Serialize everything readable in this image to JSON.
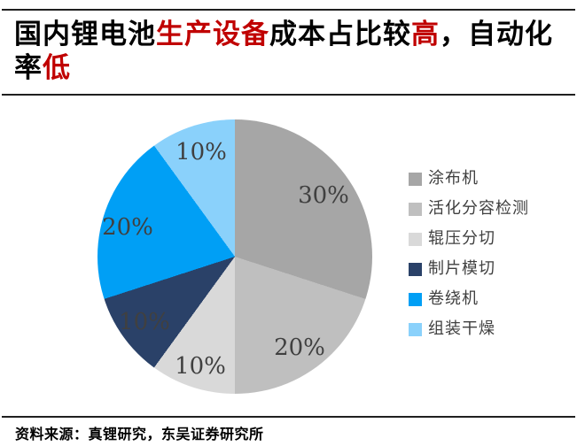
{
  "header": {
    "title_seg1": "国内锂电池",
    "title_seg2": "生产设备",
    "title_seg3": "成本占比较",
    "title_seg4": "高",
    "title_seg5": "，自动化",
    "title_seg6": "率",
    "title_seg7": "低",
    "accent_color": "#c00000"
  },
  "chart_data": {
    "type": "pie",
    "title": "国内锂电池生产设备成本占比较高，自动化率低",
    "labels": [
      "涂布机",
      "活化分容检测",
      "辊压分切",
      "制片模切",
      "卷绕机",
      "组装干燥"
    ],
    "values": [
      30,
      20,
      10,
      10,
      20,
      10
    ],
    "unit": "%",
    "slice_labels": [
      "30%",
      "20%",
      "10%",
      "10%",
      "20%",
      "10%"
    ],
    "colors": [
      "#a6a6a6",
      "#bfbfbf",
      "#d9d9d9",
      "#2a4168",
      "#009ff5",
      "#8ad1fb"
    ],
    "start_angle_deg": 0,
    "direction": "clockwise",
    "legend_position": "right",
    "label_color": "#404040"
  },
  "footer": {
    "source_text": "资料来源：真锂研究，东吴证券研究所"
  }
}
